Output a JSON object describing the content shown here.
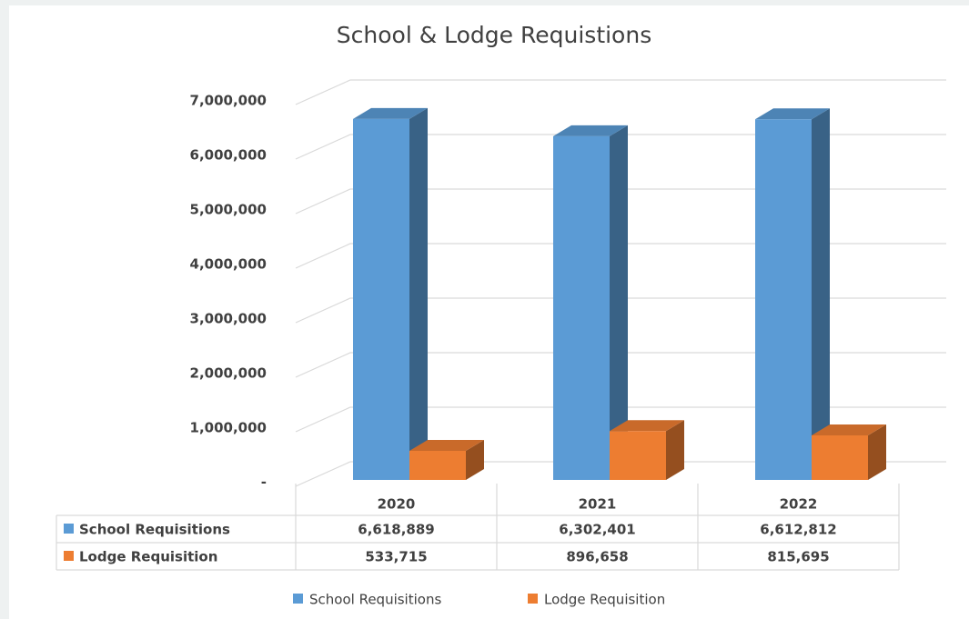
{
  "chart_data": {
    "type": "bar3d",
    "title": "School & Lodge Requistions",
    "categories": [
      "2020",
      "2021",
      "2022"
    ],
    "series": [
      {
        "name": "School Requisitions",
        "color": "#5b9bd5",
        "values": [
          6618889,
          6302401,
          6612812
        ],
        "value_labels": [
          "6,618,889",
          "6,302,401",
          "6,612,812"
        ]
      },
      {
        "name": "Lodge Requisition",
        "color": "#ed7d31",
        "values": [
          533715,
          896658,
          815695
        ],
        "value_labels": [
          "533,715",
          "896,658",
          "815,695"
        ]
      }
    ],
    "ylim": [
      0,
      7000000
    ],
    "yticks": [
      {
        "value": 0,
        "label": "-"
      },
      {
        "value": 1000000,
        "label": "1,000,000"
      },
      {
        "value": 2000000,
        "label": "2,000,000"
      },
      {
        "value": 3000000,
        "label": "3,000,000"
      },
      {
        "value": 4000000,
        "label": "4,000,000"
      },
      {
        "value": 5000000,
        "label": "5,000,000"
      },
      {
        "value": 6000000,
        "label": "6,000,000"
      },
      {
        "value": 7000000,
        "label": "7,000,000"
      }
    ],
    "grid": true,
    "legend": "bottom"
  }
}
